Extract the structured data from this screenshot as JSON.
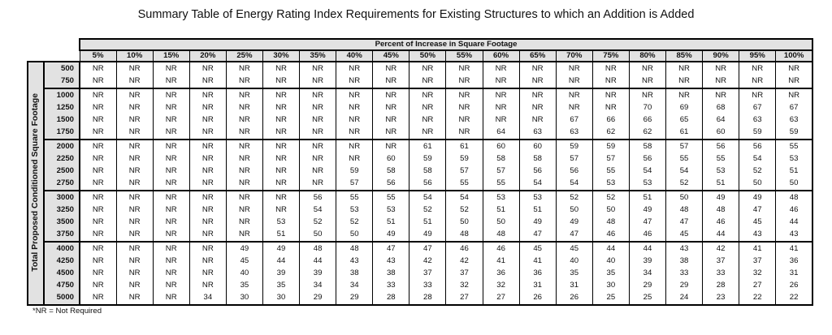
{
  "title": "Summary Table of Energy Rating Index Requirements for Existing Structures to which an Addition is Added",
  "column_group_label": "Percent of Increase in Square Footage",
  "row_group_label": "Total Proposed Conditioned Square Footage",
  "columns": [
    "5%",
    "10%",
    "15%",
    "20%",
    "25%",
    "30%",
    "35%",
    "40%",
    "45%",
    "50%",
    "55%",
    "60%",
    "65%",
    "70%",
    "75%",
    "80%",
    "85%",
    "90%",
    "95%",
    "100%"
  ],
  "row_groups": [
    [
      {
        "label": "500",
        "values": [
          "NR",
          "NR",
          "NR",
          "NR",
          "NR",
          "NR",
          "NR",
          "NR",
          "NR",
          "NR",
          "NR",
          "NR",
          "NR",
          "NR",
          "NR",
          "NR",
          "NR",
          "NR",
          "NR",
          "NR"
        ]
      },
      {
        "label": "750",
        "values": [
          "NR",
          "NR",
          "NR",
          "NR",
          "NR",
          "NR",
          "NR",
          "NR",
          "NR",
          "NR",
          "NR",
          "NR",
          "NR",
          "NR",
          "NR",
          "NR",
          "NR",
          "NR",
          "NR",
          "NR"
        ]
      }
    ],
    [
      {
        "label": "1000",
        "values": [
          "NR",
          "NR",
          "NR",
          "NR",
          "NR",
          "NR",
          "NR",
          "NR",
          "NR",
          "NR",
          "NR",
          "NR",
          "NR",
          "NR",
          "NR",
          "NR",
          "NR",
          "NR",
          "NR",
          "NR"
        ]
      },
      {
        "label": "1250",
        "values": [
          "NR",
          "NR",
          "NR",
          "NR",
          "NR",
          "NR",
          "NR",
          "NR",
          "NR",
          "NR",
          "NR",
          "NR",
          "NR",
          "NR",
          "NR",
          "70",
          "69",
          "68",
          "67",
          "67"
        ]
      },
      {
        "label": "1500",
        "values": [
          "NR",
          "NR",
          "NR",
          "NR",
          "NR",
          "NR",
          "NR",
          "NR",
          "NR",
          "NR",
          "NR",
          "NR",
          "NR",
          "67",
          "66",
          "66",
          "65",
          "64",
          "63",
          "63"
        ]
      },
      {
        "label": "1750",
        "values": [
          "NR",
          "NR",
          "NR",
          "NR",
          "NR",
          "NR",
          "NR",
          "NR",
          "NR",
          "NR",
          "NR",
          "64",
          "63",
          "63",
          "62",
          "62",
          "61",
          "60",
          "59",
          "59"
        ]
      }
    ],
    [
      {
        "label": "2000",
        "values": [
          "NR",
          "NR",
          "NR",
          "NR",
          "NR",
          "NR",
          "NR",
          "NR",
          "NR",
          "61",
          "61",
          "60",
          "60",
          "59",
          "59",
          "58",
          "57",
          "56",
          "56",
          "55"
        ]
      },
      {
        "label": "2250",
        "values": [
          "NR",
          "NR",
          "NR",
          "NR",
          "NR",
          "NR",
          "NR",
          "NR",
          "60",
          "59",
          "59",
          "58",
          "58",
          "57",
          "57",
          "56",
          "55",
          "55",
          "54",
          "53"
        ]
      },
      {
        "label": "2500",
        "values": [
          "NR",
          "NR",
          "NR",
          "NR",
          "NR",
          "NR",
          "NR",
          "59",
          "58",
          "58",
          "57",
          "57",
          "56",
          "56",
          "55",
          "54",
          "54",
          "53",
          "52",
          "51"
        ]
      },
      {
        "label": "2750",
        "values": [
          "NR",
          "NR",
          "NR",
          "NR",
          "NR",
          "NR",
          "NR",
          "57",
          "56",
          "56",
          "55",
          "55",
          "54",
          "54",
          "53",
          "53",
          "52",
          "51",
          "50",
          "50"
        ]
      }
    ],
    [
      {
        "label": "3000",
        "values": [
          "NR",
          "NR",
          "NR",
          "NR",
          "NR",
          "NR",
          "56",
          "55",
          "55",
          "54",
          "54",
          "53",
          "53",
          "52",
          "52",
          "51",
          "50",
          "49",
          "49",
          "48"
        ]
      },
      {
        "label": "3250",
        "values": [
          "NR",
          "NR",
          "NR",
          "NR",
          "NR",
          "NR",
          "54",
          "53",
          "53",
          "52",
          "52",
          "51",
          "51",
          "50",
          "50",
          "49",
          "48",
          "48",
          "47",
          "46"
        ]
      },
      {
        "label": "3500",
        "values": [
          "NR",
          "NR",
          "NR",
          "NR",
          "NR",
          "53",
          "52",
          "52",
          "51",
          "51",
          "50",
          "50",
          "49",
          "49",
          "48",
          "47",
          "47",
          "46",
          "45",
          "44"
        ]
      },
      {
        "label": "3750",
        "values": [
          "NR",
          "NR",
          "NR",
          "NR",
          "NR",
          "51",
          "50",
          "50",
          "49",
          "49",
          "48",
          "48",
          "47",
          "47",
          "46",
          "46",
          "45",
          "44",
          "43",
          "43"
        ]
      }
    ],
    [
      {
        "label": "4000",
        "values": [
          "NR",
          "NR",
          "NR",
          "NR",
          "49",
          "49",
          "48",
          "48",
          "47",
          "47",
          "46",
          "46",
          "45",
          "45",
          "44",
          "44",
          "43",
          "42",
          "41",
          "41"
        ]
      },
      {
        "label": "4250",
        "values": [
          "NR",
          "NR",
          "NR",
          "NR",
          "45",
          "44",
          "44",
          "43",
          "43",
          "42",
          "42",
          "41",
          "41",
          "40",
          "40",
          "39",
          "38",
          "37",
          "37",
          "36"
        ]
      },
      {
        "label": "4500",
        "values": [
          "NR",
          "NR",
          "NR",
          "NR",
          "40",
          "39",
          "39",
          "38",
          "38",
          "37",
          "37",
          "36",
          "36",
          "35",
          "35",
          "34",
          "33",
          "33",
          "32",
          "31"
        ]
      },
      {
        "label": "4750",
        "values": [
          "NR",
          "NR",
          "NR",
          "NR",
          "35",
          "35",
          "34",
          "34",
          "33",
          "33",
          "32",
          "32",
          "31",
          "31",
          "30",
          "29",
          "29",
          "28",
          "27",
          "26"
        ]
      },
      {
        "label": "5000",
        "values": [
          "NR",
          "NR",
          "NR",
          "34",
          "30",
          "30",
          "29",
          "29",
          "28",
          "28",
          "27",
          "27",
          "26",
          "26",
          "25",
          "25",
          "24",
          "23",
          "22",
          "22"
        ]
      }
    ]
  ],
  "footnote": "*NR = Not Required"
}
